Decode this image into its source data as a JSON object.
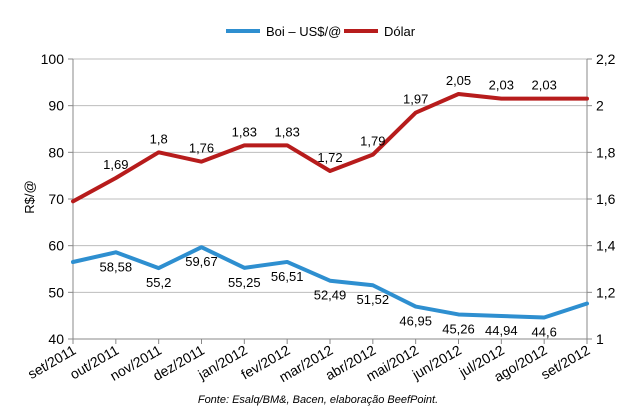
{
  "chart_data": {
    "type": "line",
    "categories": [
      "set/2011",
      "out/2011",
      "nov/2011",
      "dez/2011",
      "jan/2012",
      "fev/2012",
      "mar/2012",
      "abr/2012",
      "mai/2012",
      "jun/2012",
      "jul/2012",
      "ago/2012",
      "set/2012"
    ],
    "ylabel": "R$/@",
    "ylim": [
      40,
      100
    ],
    "yticks": [
      "40",
      "50",
      "60",
      "70",
      "80",
      "90",
      "100"
    ],
    "y2lim": [
      1,
      2.2
    ],
    "y2ticks": [
      "1",
      "1,2",
      "1,4",
      "1,6",
      "1,8",
      "2",
      "2,2"
    ],
    "grid": true,
    "legend_position": "top-center",
    "source": "Fonte: Esalq/BM&, Bacen, elaboração BeefPoint.",
    "series": [
      {
        "name": "Boi – US$/@",
        "axis": "left",
        "color": "#2e8fd0",
        "values": [
          56.5,
          58.58,
          55.2,
          59.67,
          55.25,
          56.51,
          52.49,
          51.52,
          46.95,
          45.26,
          44.94,
          44.6,
          47.6
        ],
        "labels": [
          "",
          "58,58",
          "55,2",
          "59,67",
          "55,25",
          "56,51",
          "52,49",
          "51,52",
          "46,95",
          "45,26",
          "44,94",
          "44,6",
          ""
        ]
      },
      {
        "name": "Dólar",
        "axis": "right",
        "color": "#b71c1c",
        "values": [
          1.59,
          1.69,
          1.8,
          1.76,
          1.83,
          1.83,
          1.72,
          1.79,
          1.97,
          2.05,
          2.03,
          2.03,
          2.03
        ],
        "labels": [
          "",
          "1,69",
          "1,8",
          "1,76",
          "1,83",
          "1,83",
          "1,72",
          "1,79",
          "1,97",
          "2,05",
          "2,03",
          "2,03",
          ""
        ]
      }
    ]
  }
}
